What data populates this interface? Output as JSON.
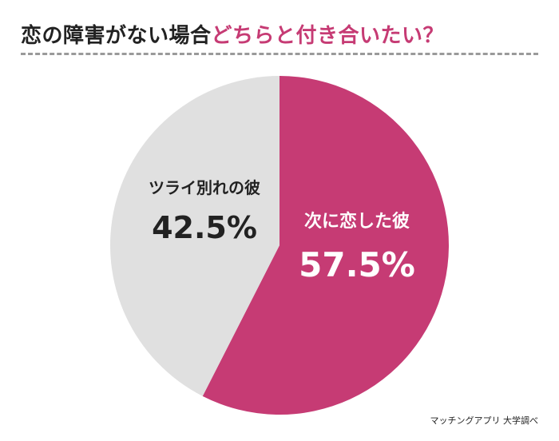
{
  "title": {
    "prefix": "恋の障害がない場合",
    "accent": "どちらと付き合いたい？"
  },
  "source": "マッチングアプリ 大学調べ",
  "colors": {
    "accent": "#c63b74",
    "gray": "#e0e0e0",
    "text_dark": "#222222",
    "white": "#ffffff"
  },
  "chart_data": {
    "type": "pie",
    "slices": [
      {
        "label": "次に恋した彼",
        "value": 57.5,
        "value_text": "57.5%",
        "color": "#c63b74"
      },
      {
        "label": "ツライ別れの彼",
        "value": 42.5,
        "value_text": "42.5%",
        "color": "#e0e0e0"
      }
    ],
    "start": "12 o'clock",
    "direction": "clockwise"
  }
}
